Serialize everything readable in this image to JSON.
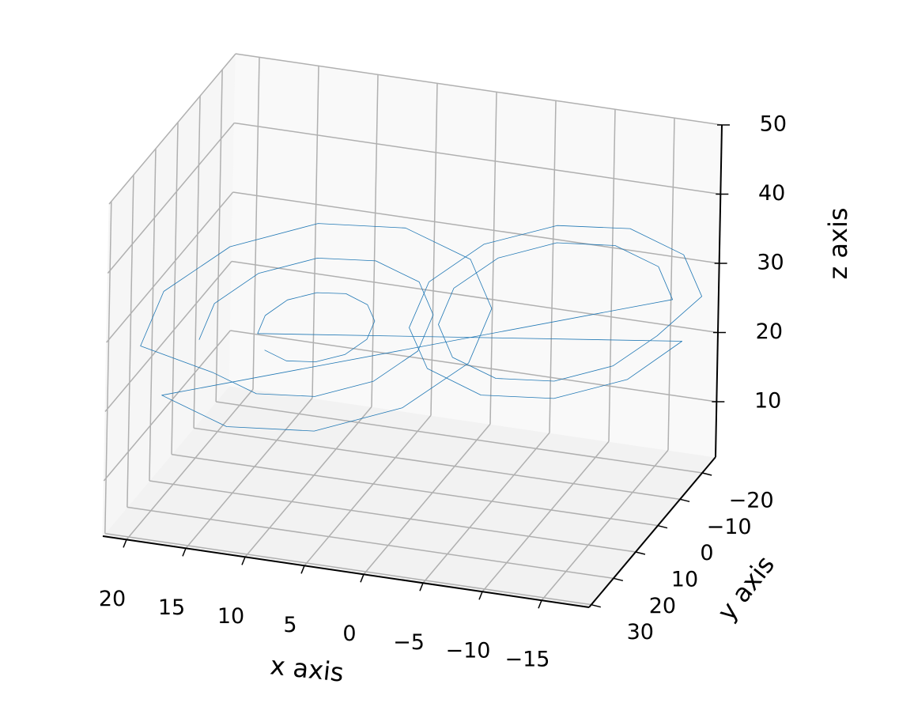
{
  "chart_data": {
    "type": "line3d",
    "xlabel": "x axis",
    "ylabel": "y axis",
    "zlabel": "z axis",
    "xlim": [
      -19,
      22
    ],
    "ylim": [
      -26,
      31
    ],
    "zlim": [
      2,
      50
    ],
    "xticks": [
      20,
      15,
      10,
      5,
      0,
      {
        "value": -5,
        "label": "−5"
      },
      {
        "value": -10,
        "label": "−10"
      },
      {
        "value": -15,
        "label": "−15"
      }
    ],
    "yticks": [
      {
        "value": -20,
        "label": "−20"
      },
      {
        "value": -10,
        "label": "−10"
      },
      0,
      10,
      20,
      30
    ],
    "zticks": [
      10,
      20,
      30,
      40,
      50
    ],
    "grid": true,
    "series": [
      {
        "color": "#1f77b4",
        "x": [
          16.5,
          15.5,
          12.5,
          8.5,
          4.5,
          1.5,
          0.5,
          1.5,
          4.5,
          8.5,
          12.5,
          15.5,
          20.5,
          19,
          14.5,
          8.5,
          2.5,
          -2,
          -3.5,
          -2,
          2.5,
          8.5,
          14.5,
          19,
          -16.5,
          -15.5,
          -12.5,
          -8.5,
          -4.5,
          -1.5,
          -0.5,
          -1.5,
          -4.5,
          -8.5,
          -12.5,
          -15.5,
          -18.5,
          -17.2,
          -13.5,
          -8.5,
          -3.5,
          0.2,
          1.5,
          0.2,
          -3.5,
          -8.5,
          -13.5,
          -17.2,
          12.5,
          12,
          10.5,
          8.5,
          6.5,
          5,
          4.5,
          5,
          6.5,
          8.5,
          10.5,
          12
        ],
        "y": [
          18.5,
          17.2,
          13.5,
          8.5,
          3.5,
          -0.2,
          -1.5,
          -0.2,
          3.5,
          8.5,
          13.5,
          17.2,
          23.5,
          21.5,
          16,
          8.5,
          1,
          -4.5,
          -6.5,
          -4.5,
          1,
          8.5,
          16,
          21.5,
          -18.5,
          -17.2,
          -13.5,
          -8.5,
          -3.5,
          0.2,
          1.5,
          0.2,
          -3.5,
          -8.5,
          -13.5,
          -17.2,
          -21,
          -19.4,
          -14.8,
          -8.5,
          -2.3,
          2.4,
          4,
          2.4,
          -2.3,
          -8.5,
          -14.8,
          -19.4,
          13.5,
          12.9,
          11,
          8.5,
          6,
          4.2,
          3.5,
          4.2,
          6,
          8.5,
          11,
          12.9
        ],
        "z": [
          27,
          32,
          35.7,
          37,
          35.7,
          32,
          27,
          22,
          18.3,
          17,
          18.3,
          22,
          27,
          34.5,
          40,
          42,
          40,
          34.5,
          27,
          19.5,
          14,
          12,
          14,
          19.5,
          27,
          32,
          35.7,
          37,
          35.7,
          32,
          27,
          22,
          18.3,
          17,
          18.3,
          22,
          27,
          33.3,
          37.9,
          39.5,
          37.9,
          33.3,
          27,
          20.8,
          16.1,
          14.5,
          16.1,
          20.8,
          27,
          29.5,
          31.4,
          32,
          31.4,
          29.5,
          27,
          24.5,
          22.6,
          22,
          22.6,
          24.5
        ]
      }
    ]
  }
}
